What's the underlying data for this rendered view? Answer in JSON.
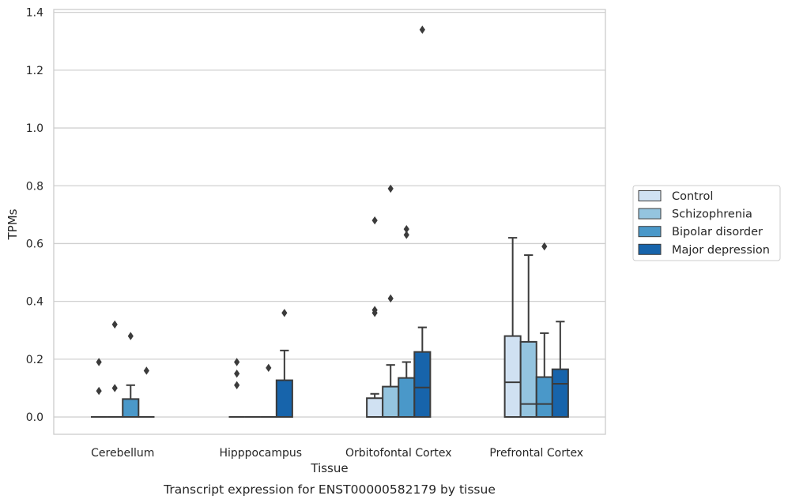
{
  "chart_data": {
    "type": "box",
    "xlabel": "Tissue",
    "ylabel": "TPMs",
    "caption": "Transcript expression for ENST00000582179 by tissue",
    "ylim": [
      -0.06,
      1.41
    ],
    "yticks": [
      "0.0",
      "0.2",
      "0.4",
      "0.6",
      "0.8",
      "1.0",
      "1.2",
      "1.4"
    ],
    "grid": true,
    "legend_position": "right",
    "categories": [
      "Cerebellum",
      "Hipppocampus",
      "Orbitofontal Cortex",
      "Prefrontal Cortex"
    ],
    "series": [
      {
        "name": "Control",
        "color": "#d0e1f2",
        "boxes": [
          {
            "q1": 0,
            "median": 0,
            "q3": 0,
            "whisker_low": 0,
            "whisker_high": 0,
            "outliers": [
              0.09,
              0.19
            ]
          },
          {
            "q1": 0,
            "median": 0,
            "q3": 0,
            "whisker_low": 0,
            "whisker_high": 0,
            "outliers": [
              0.11,
              0.15,
              0.19
            ]
          },
          {
            "q1": 0,
            "median": 0,
            "q3": 0.065,
            "whisker_low": 0,
            "whisker_high": 0.08,
            "outliers": [
              0.36,
              0.37,
              0.68
            ]
          },
          {
            "q1": 0,
            "median": 0.12,
            "q3": 0.28,
            "whisker_low": 0,
            "whisker_high": 0.62,
            "outliers": []
          }
        ]
      },
      {
        "name": "Schizophrenia",
        "color": "#94c4df",
        "boxes": [
          {
            "q1": 0,
            "median": 0,
            "q3": 0,
            "whisker_low": 0,
            "whisker_high": 0,
            "outliers": [
              0.1,
              0.32
            ]
          },
          {
            "q1": 0,
            "median": 0,
            "q3": 0,
            "whisker_low": 0,
            "whisker_high": 0,
            "outliers": []
          },
          {
            "q1": 0,
            "median": 0,
            "q3": 0.105,
            "whisker_low": 0,
            "whisker_high": 0.18,
            "outliers": [
              0.41,
              0.79
            ]
          },
          {
            "q1": 0,
            "median": 0.045,
            "q3": 0.26,
            "whisker_low": 0,
            "whisker_high": 0.56,
            "outliers": []
          }
        ]
      },
      {
        "name": "Bipolar disorder",
        "color": "#4a98c9",
        "boxes": [
          {
            "q1": 0,
            "median": 0,
            "q3": 0.062,
            "whisker_low": 0,
            "whisker_high": 0.11,
            "outliers": [
              0.28
            ]
          },
          {
            "q1": 0,
            "median": 0,
            "q3": 0,
            "whisker_low": 0,
            "whisker_high": 0,
            "outliers": [
              0.17
            ]
          },
          {
            "q1": 0,
            "median": 0,
            "q3": 0.135,
            "whisker_low": 0,
            "whisker_high": 0.19,
            "outliers": [
              0.63,
              0.65
            ]
          },
          {
            "q1": 0,
            "median": 0.045,
            "q3": 0.138,
            "whisker_low": 0,
            "whisker_high": 0.29,
            "outliers": [
              0.59
            ]
          }
        ]
      },
      {
        "name": "Major depression",
        "color": "#1764ab",
        "boxes": [
          {
            "q1": 0,
            "median": 0,
            "q3": 0,
            "whisker_low": 0,
            "whisker_high": 0,
            "outliers": [
              0.16
            ]
          },
          {
            "q1": 0,
            "median": 0,
            "q3": 0.127,
            "whisker_low": 0,
            "whisker_high": 0.23,
            "outliers": [
              0.36
            ]
          },
          {
            "q1": 0,
            "median": 0.102,
            "q3": 0.225,
            "whisker_low": 0,
            "whisker_high": 0.31,
            "outliers": [
              1.34
            ]
          },
          {
            "q1": 0,
            "median": 0.115,
            "q3": 0.165,
            "whisker_low": 0,
            "whisker_high": 0.33,
            "outliers": []
          }
        ]
      }
    ]
  }
}
